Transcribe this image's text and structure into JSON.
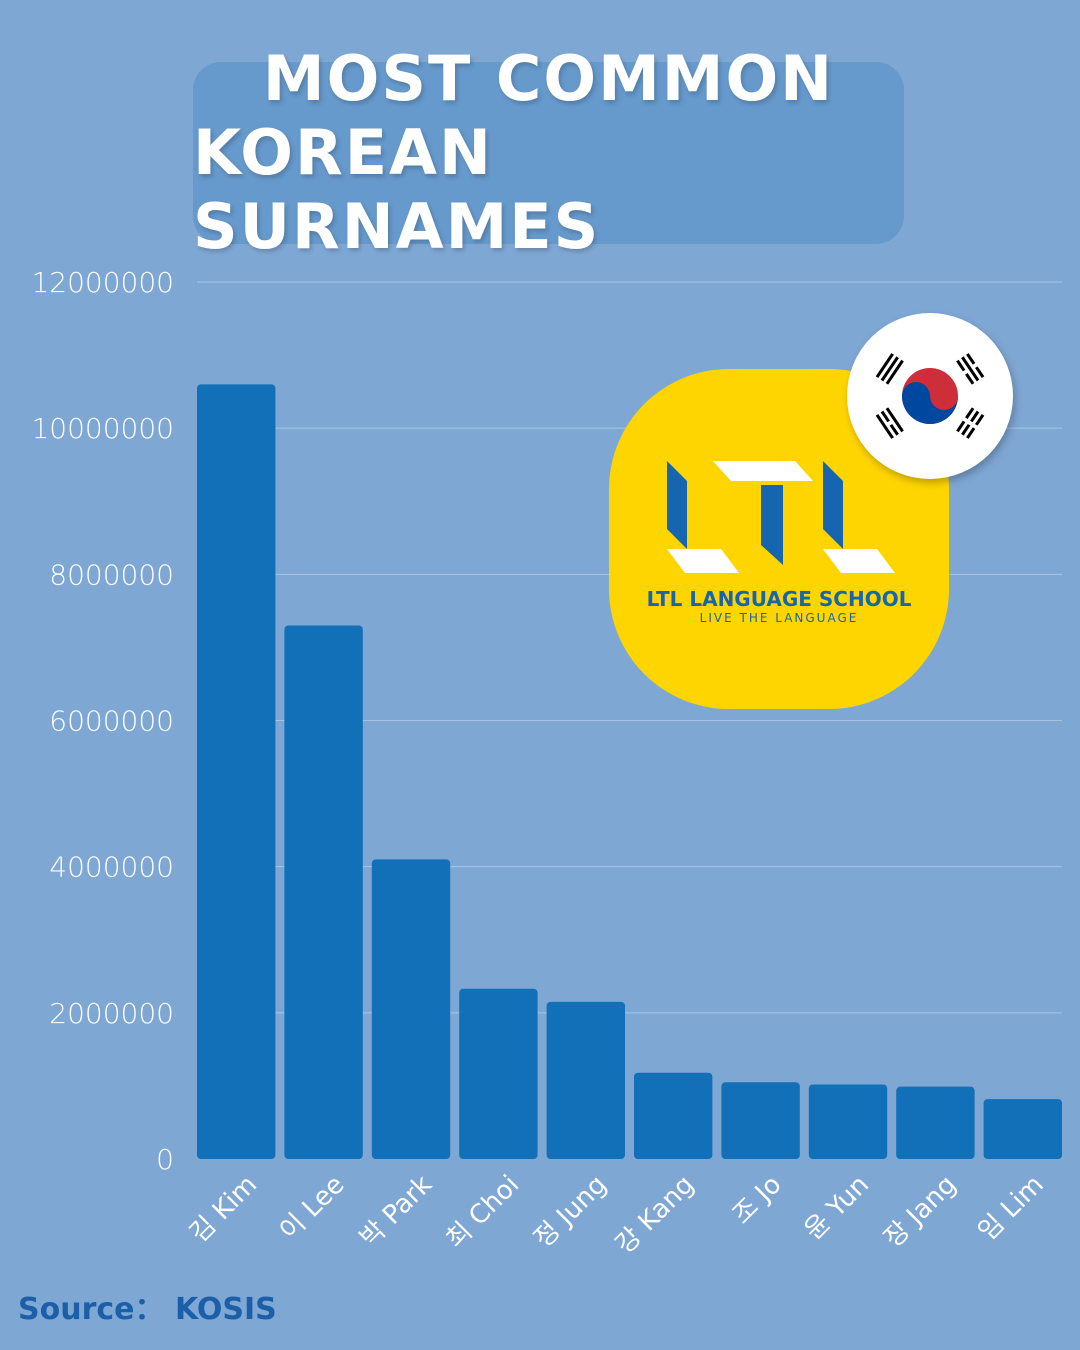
{
  "title": {
    "line1": "MOST COMMON",
    "line2": "KOREAN SURNAMES"
  },
  "source": "Source： KOSIS",
  "logo": {
    "name": "LTL LANGUAGE SCHOOL",
    "tagline": "LIVE THE LANGUAGE"
  },
  "colors": {
    "background": "#7fa7d4",
    "bar": "#1170b8",
    "title_box": "#6699cc",
    "logo_bg": "#ffd500",
    "source_text": "#1a5fa8"
  },
  "chart_data": {
    "type": "bar",
    "categories": [
      "김 Kim",
      "이 Lee",
      "박 Park",
      "최 Choi",
      "정 Jung",
      "강 Kang",
      "조 Jo",
      "윤 Yun",
      "장 Jang",
      "임 Lim"
    ],
    "values": [
      10600000,
      7300000,
      4100000,
      2330000,
      2150000,
      1180000,
      1050000,
      1020000,
      990000,
      820000
    ],
    "yticks": [
      "0",
      "2000000",
      "4000000",
      "6000000",
      "8000000",
      "10000000",
      "12000000"
    ],
    "ylim": [
      0,
      12000000
    ],
    "grid": true
  }
}
